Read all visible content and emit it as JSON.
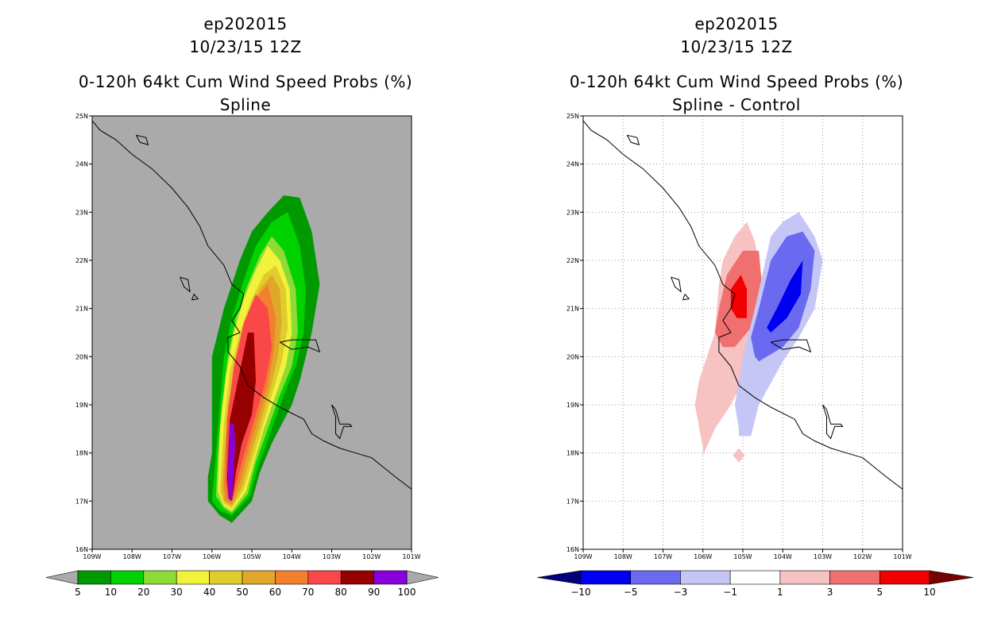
{
  "chart_data": [
    {
      "type": "contour-map",
      "storm_id": "ep202015",
      "datetime": "10/23/15 12Z",
      "title": "0-120h 64kt Cum Wind Speed Probs (%)",
      "subtitle": "Spline",
      "xlim": [
        -109,
        -101
      ],
      "ylim": [
        16,
        25
      ],
      "x_ticks": [
        "109W",
        "108W",
        "107W",
        "106W",
        "105W",
        "104W",
        "103W",
        "102W",
        "101W"
      ],
      "y_ticks": [
        "16N",
        "17N",
        "18N",
        "19N",
        "20N",
        "21N",
        "22N",
        "23N",
        "24N",
        "25N"
      ],
      "grid": false,
      "colorbar": {
        "labels": [
          "5",
          "10",
          "20",
          "30",
          "40",
          "50",
          "60",
          "70",
          "80",
          "90",
          "100"
        ],
        "colors": [
          "#009a00",
          "#00d200",
          "#8fdb36",
          "#f2f23a",
          "#e0cc2c",
          "#e0a82a",
          "#f2802c",
          "#fa4848",
          "#960000",
          "#8a00dc"
        ]
      },
      "levels": [
        5,
        10,
        20,
        30,
        40,
        50,
        60,
        70,
        80,
        90
      ],
      "contours": [
        {
          "level": 5,
          "lon": [
            -105.5,
            -105.0,
            -104.8,
            -104.5,
            -104.0,
            -103.8,
            -103.5,
            -103.3,
            -103.5,
            -103.8,
            -104.2,
            -104.6,
            -105.0,
            -105.3,
            -105.7,
            -106.0,
            -106.0,
            -106.0,
            -106.1,
            -106.1,
            -105.8
          ],
          "lat": [
            16.55,
            17.0,
            17.6,
            18.2,
            19.0,
            19.5,
            20.5,
            21.5,
            22.6,
            23.3,
            23.35,
            23.0,
            22.6,
            22.0,
            21.0,
            20.0,
            19.0,
            18.0,
            17.5,
            17.0,
            16.7
          ]
        },
        {
          "level": 10,
          "lon": [
            -105.5,
            -105.05,
            -104.85,
            -104.5,
            -104.2,
            -103.9,
            -103.7,
            -103.65,
            -103.8,
            -104.1,
            -104.5,
            -104.9,
            -105.2,
            -105.5,
            -105.7,
            -105.8,
            -105.9,
            -106.0,
            -105.8
          ],
          "lat": [
            16.7,
            17.1,
            17.7,
            18.5,
            19.2,
            19.8,
            20.5,
            21.4,
            22.3,
            23.0,
            22.8,
            22.3,
            21.6,
            20.8,
            20.0,
            19.0,
            18.0,
            17.0,
            16.8
          ]
        },
        {
          "level": 20,
          "lon": [
            -105.5,
            -105.1,
            -104.9,
            -104.6,
            -104.3,
            -104.0,
            -103.85,
            -103.9,
            -104.2,
            -104.5,
            -104.8,
            -105.1,
            -105.4,
            -105.6,
            -105.75,
            -105.85,
            -105.9,
            -105.7
          ],
          "lat": [
            16.75,
            17.15,
            17.8,
            18.5,
            19.2,
            19.8,
            20.5,
            21.4,
            22.2,
            22.5,
            22.1,
            21.5,
            20.8,
            20.0,
            19.0,
            18.0,
            17.1,
            16.85
          ]
        },
        {
          "level": 30,
          "lon": [
            -105.5,
            -105.15,
            -104.95,
            -104.7,
            -104.4,
            -104.15,
            -104.0,
            -104.05,
            -104.3,
            -104.6,
            -104.9,
            -105.2,
            -105.45,
            -105.65,
            -105.8,
            -105.85,
            -105.7
          ],
          "lat": [
            16.8,
            17.2,
            17.8,
            18.5,
            19.2,
            19.8,
            20.5,
            21.4,
            22.0,
            22.3,
            21.8,
            21.2,
            20.5,
            19.6,
            18.5,
            17.2,
            16.9
          ]
        },
        {
          "level": 40,
          "lon": [
            -105.5,
            -105.2,
            -105.0,
            -104.75,
            -104.5,
            -104.25,
            -104.1,
            -104.15,
            -104.4,
            -104.7,
            -105.0,
            -105.3,
            -105.55,
            -105.7,
            -105.8,
            -105.7
          ],
          "lat": [
            16.85,
            17.25,
            17.8,
            18.5,
            19.2,
            19.9,
            20.6,
            21.4,
            21.9,
            21.7,
            21.2,
            20.5,
            19.7,
            18.6,
            17.2,
            16.95
          ]
        },
        {
          "level": 50,
          "lon": [
            -105.5,
            -105.25,
            -105.05,
            -104.8,
            -104.55,
            -104.35,
            -104.25,
            -104.3,
            -104.5,
            -104.8,
            -105.1,
            -105.35,
            -105.6,
            -105.75,
            -105.7
          ],
          "lat": [
            16.9,
            17.3,
            17.9,
            18.6,
            19.3,
            20.0,
            20.7,
            21.4,
            21.7,
            21.4,
            20.8,
            20.0,
            19.0,
            17.3,
            17.0
          ]
        },
        {
          "level": 60,
          "lon": [
            -105.5,
            -105.3,
            -105.1,
            -104.85,
            -104.6,
            -104.45,
            -104.4,
            -104.6,
            -104.9,
            -105.2,
            -105.45,
            -105.65,
            -105.7,
            -105.65
          ],
          "lat": [
            16.95,
            17.4,
            18.0,
            18.7,
            19.4,
            20.1,
            20.8,
            21.5,
            21.2,
            20.5,
            19.6,
            18.3,
            17.3,
            17.0
          ]
        },
        {
          "level": 70,
          "lon": [
            -105.5,
            -105.35,
            -105.15,
            -104.9,
            -104.65,
            -104.5,
            -104.6,
            -104.9,
            -105.2,
            -105.45,
            -105.62,
            -105.65,
            -105.6
          ],
          "lat": [
            17.0,
            17.5,
            18.1,
            18.8,
            19.5,
            20.2,
            21.0,
            21.3,
            20.7,
            19.8,
            18.7,
            17.4,
            17.05
          ]
        },
        {
          "level": 80,
          "lon": [
            -105.5,
            -105.4,
            -105.25,
            -105.0,
            -104.9,
            -104.95,
            -105.1,
            -105.35,
            -105.55,
            -105.62,
            -105.58
          ],
          "lat": [
            17.0,
            17.6,
            18.2,
            18.8,
            19.5,
            20.5,
            20.5,
            19.5,
            18.7,
            17.5,
            17.05
          ]
        },
        {
          "level": 90,
          "lon": [
            -105.5,
            -105.45,
            -105.42,
            -105.45,
            -105.55,
            -105.6,
            -105.58
          ],
          "lat": [
            17.0,
            17.6,
            18.2,
            18.6,
            18.6,
            17.6,
            17.05
          ]
        }
      ]
    },
    {
      "type": "contour-map",
      "storm_id": "ep202015",
      "datetime": "10/23/15 12Z",
      "title": "0-120h 64kt Cum Wind Speed Probs (%)",
      "subtitle": "Spline - Control",
      "xlim": [
        -109,
        -101
      ],
      "ylim": [
        16,
        25
      ],
      "x_ticks": [
        "109W",
        "108W",
        "107W",
        "106W",
        "105W",
        "104W",
        "103W",
        "102W",
        "101W"
      ],
      "y_ticks": [
        "16N",
        "17N",
        "18N",
        "19N",
        "20N",
        "21N",
        "22N",
        "23N",
        "24N",
        "25N"
      ],
      "grid": true,
      "colorbar": {
        "labels": [
          "-10",
          "-5",
          "-3",
          "-1",
          "1",
          "3",
          "5",
          "10"
        ],
        "colors": [
          "#00007a",
          "#0000f0",
          "#6a6af0",
          "#c6c6f6",
          "#ffffff",
          "#f6c2c2",
          "#f07070",
          "#f00000",
          "#780000"
        ]
      },
      "contours": [
        {
          "level": 1,
          "lon": [
            -106.0,
            -105.7,
            -105.3,
            -105.0,
            -104.6,
            -104.5,
            -104.5,
            -104.7,
            -104.9,
            -105.2,
            -105.5,
            -105.6,
            -105.7,
            -105.9,
            -106.1,
            -106.2,
            -106.0
          ],
          "lat": [
            17.95,
            18.5,
            19.0,
            19.5,
            20.0,
            20.5,
            21.5,
            22.4,
            22.8,
            22.5,
            22.0,
            21.5,
            20.5,
            20.0,
            19.5,
            19.0,
            18.1
          ]
        },
        {
          "level": 1,
          "lon": [
            -105.1,
            -104.95,
            -105.1,
            -105.25
          ],
          "lat": [
            17.8,
            17.95,
            18.1,
            17.95
          ]
        },
        {
          "level": 3,
          "lon": [
            -105.5,
            -105.2,
            -104.8,
            -104.5,
            -104.6,
            -105.0,
            -105.4,
            -105.6,
            -105.7
          ],
          "lat": [
            20.2,
            20.2,
            20.6,
            21.3,
            22.2,
            22.2,
            21.7,
            21.0,
            20.5
          ]
        },
        {
          "level": 5,
          "lon": [
            -105.15,
            -104.9,
            -104.9,
            -105.05,
            -105.3,
            -105.3
          ],
          "lat": [
            20.8,
            20.8,
            21.4,
            21.7,
            21.4,
            21.0
          ]
        },
        {
          "level": -1,
          "lon": [
            -105.1,
            -104.8,
            -104.6,
            -104.0,
            -103.6,
            -103.2,
            -103.0,
            -103.2,
            -103.6,
            -104.0,
            -104.3,
            -104.7,
            -105.0,
            -105.2,
            -105.1
          ],
          "lat": [
            18.35,
            18.35,
            19.0,
            19.9,
            20.4,
            21.0,
            22.0,
            22.5,
            23.0,
            22.8,
            22.5,
            21.0,
            20.0,
            19.0,
            18.5
          ]
        },
        {
          "level": -3,
          "lon": [
            -104.6,
            -104.0,
            -103.6,
            -103.3,
            -103.2,
            -103.5,
            -103.9,
            -104.3,
            -104.6,
            -104.8,
            -104.7
          ],
          "lat": [
            19.9,
            20.2,
            20.6,
            21.4,
            22.2,
            22.6,
            22.5,
            22.0,
            21.0,
            20.4,
            20.0
          ]
        },
        {
          "level": -5,
          "lon": [
            -104.3,
            -103.9,
            -103.55,
            -103.5,
            -103.8,
            -104.15,
            -104.4,
            -104.3
          ],
          "lat": [
            20.5,
            20.8,
            21.3,
            22.0,
            21.6,
            21.0,
            20.6,
            20.5
          ]
        }
      ]
    }
  ]
}
